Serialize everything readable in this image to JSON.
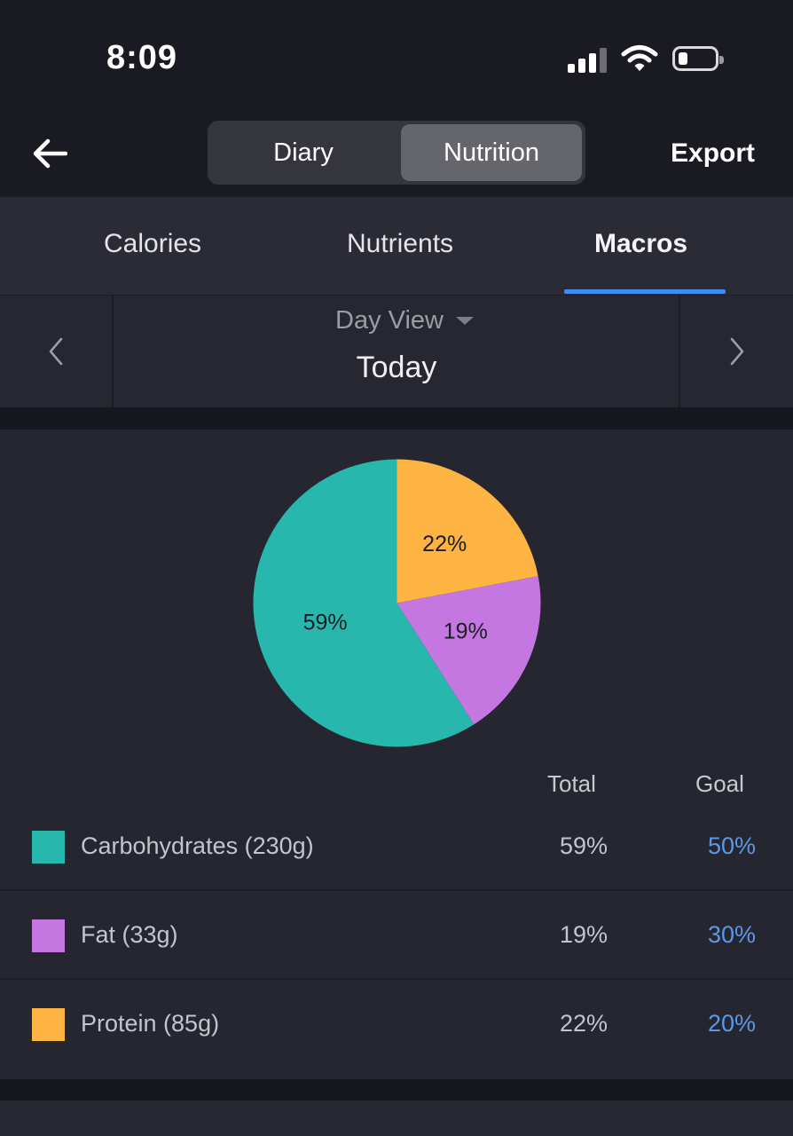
{
  "status": {
    "time": "8:09"
  },
  "header": {
    "segments": [
      "Diary",
      "Nutrition"
    ],
    "selected_segment": "Nutrition",
    "export_label": "Export"
  },
  "tabs": [
    {
      "label": "Calories",
      "active": false
    },
    {
      "label": "Nutrients",
      "active": false
    },
    {
      "label": "Macros",
      "active": true
    }
  ],
  "date_nav": {
    "view_label": "Day View",
    "date_label": "Today"
  },
  "legend": {
    "total_header": "Total",
    "goal_header": "Goal"
  },
  "macros": [
    {
      "label": "Carbohydrates (230g)",
      "total": "59%",
      "goal": "50%",
      "color": "#27b7ac"
    },
    {
      "label": "Fat (33g)",
      "total": "19%",
      "goal": "30%",
      "color": "#c477e0"
    },
    {
      "label": "Protein (85g)",
      "total": "22%",
      "goal": "20%",
      "color": "#feb443"
    }
  ],
  "colors": {
    "accent": "#3e8ef0",
    "goal_text": "#5b98e8"
  },
  "chart_data": {
    "type": "pie",
    "slices": [
      {
        "name": "Protein",
        "value": 22,
        "label": "22%",
        "color": "#feb443"
      },
      {
        "name": "Fat",
        "value": 19,
        "label": "19%",
        "color": "#c477e0"
      },
      {
        "name": "Carbohydrates",
        "value": 59,
        "label": "59%",
        "color": "#27b7ac"
      }
    ]
  }
}
